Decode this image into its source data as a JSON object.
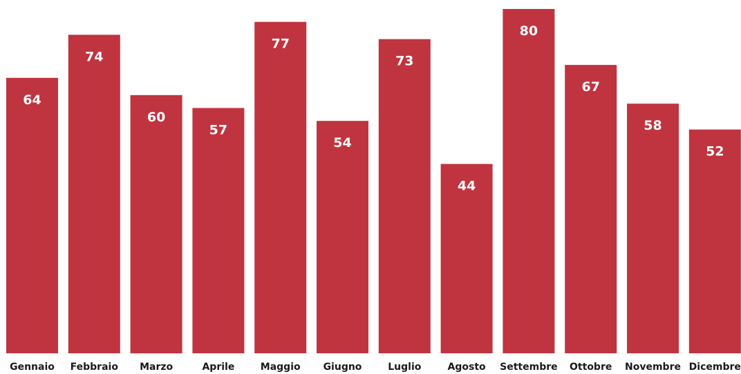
{
  "chart_data": {
    "type": "bar",
    "categories": [
      "Gennaio",
      "Febbraio",
      "Marzo",
      "Aprile",
      "Maggio",
      "Giugno",
      "Luglio",
      "Agosto",
      "Settembre",
      "Ottobre",
      "Novembre",
      "Dicembre"
    ],
    "values": [
      64,
      74,
      60,
      57,
      77,
      54,
      73,
      44,
      80,
      67,
      58,
      52
    ],
    "title": "",
    "xlabel": "",
    "ylabel": "",
    "ylim": [
      0,
      80
    ],
    "grid": false,
    "data_labels": "inside-top",
    "bar_color": "#c0343f"
  }
}
